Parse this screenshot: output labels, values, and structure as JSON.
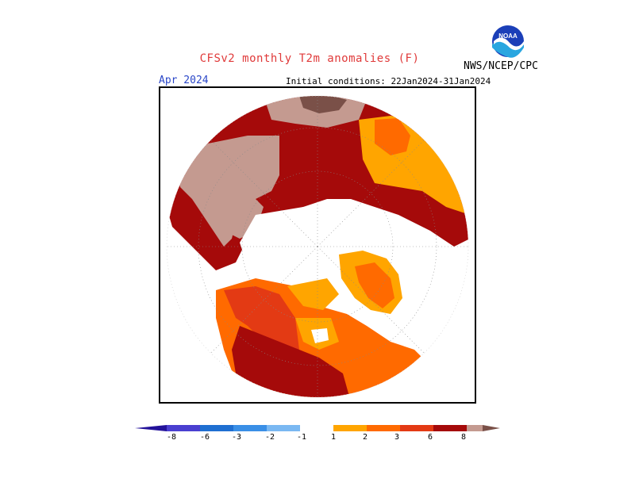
{
  "header": {
    "title": "CFSv2 monthly T2m anomalies (F)",
    "agency": "NWS/NCEP/CPC",
    "logo_text": "NOAA"
  },
  "map": {
    "valid_month": "Apr 2024",
    "initial_conditions": "Initial conditions: 22Jan2024-31Jan2024",
    "projection": "north polar stereographic",
    "dominant_signal": "warm anomalies"
  },
  "colorbar": {
    "tick_labels": [
      "-8",
      "-6",
      "-3",
      "-2",
      "-1",
      "1",
      "2",
      "3",
      "6",
      "8"
    ],
    "colors": {
      "below_-8": "#23129a",
      "-8_-6": "#4a3fd0",
      "-6_-3": "#1f6fd1",
      "-3_-2": "#3a8fe6",
      "-2_-1": "#7ab8f2",
      "-1_1": "#ffffff",
      "1_2": "#ffa500",
      "2_3": "#ff6a00",
      "3_6": "#e33a14",
      "6_8": "#a50a0a",
      "8_up": "#c49a90",
      "above": "#7a5048"
    }
  }
}
